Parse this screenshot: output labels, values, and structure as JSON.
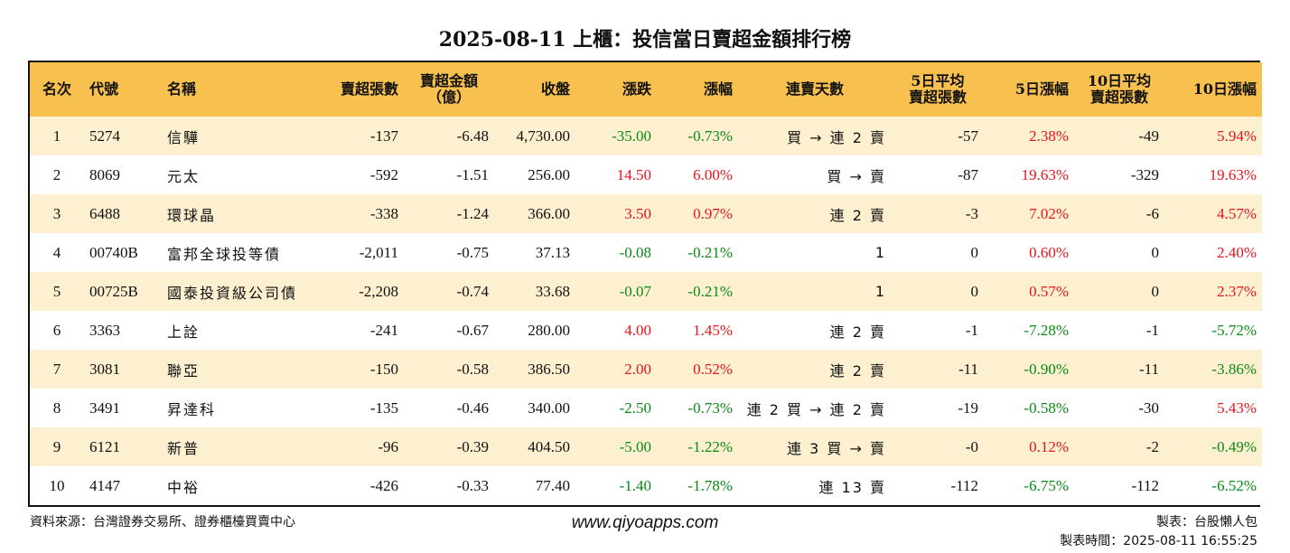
{
  "title": "2025-08-11 上櫃：投信當日賣超金額排行榜",
  "colors": {
    "header_bg": "#f7c04f",
    "row_alt": "#fdf0d0",
    "up": "#e8141c",
    "down": "#0a8a14"
  },
  "columns": [
    "名次",
    "代號",
    "名稱",
    "賣超張數",
    "賣超金額\n（億）",
    "收盤",
    "漲跌",
    "漲幅",
    "連賣天數",
    "5日平均\n賣超張數",
    "5日漲幅",
    "10日平均\n賣超張數",
    "10日漲幅"
  ],
  "rows": [
    {
      "rank": "1",
      "code": "5274",
      "name": "信驊",
      "net_lots": "-137",
      "net_amount": "-6.48",
      "close": "4,730.00",
      "change": "-35.00",
      "change_pct": "-0.73%",
      "streak": "買 → 連 2 賣",
      "avg5": "-57",
      "pct5": "2.38%",
      "avg10": "-49",
      "pct10": "5.94%"
    },
    {
      "rank": "2",
      "code": "8069",
      "name": "元太",
      "net_lots": "-592",
      "net_amount": "-1.51",
      "close": "256.00",
      "change": "14.50",
      "change_pct": "6.00%",
      "streak": "買 → 賣",
      "avg5": "-87",
      "pct5": "19.63%",
      "avg10": "-329",
      "pct10": "19.63%"
    },
    {
      "rank": "3",
      "code": "6488",
      "name": "環球晶",
      "net_lots": "-338",
      "net_amount": "-1.24",
      "close": "366.00",
      "change": "3.50",
      "change_pct": "0.97%",
      "streak": "連 2 賣",
      "avg5": "-3",
      "pct5": "7.02%",
      "avg10": "-6",
      "pct10": "4.57%"
    },
    {
      "rank": "4",
      "code": "00740B",
      "name": "富邦全球投等債",
      "net_lots": "-2,011",
      "net_amount": "-0.75",
      "close": "37.13",
      "change": "-0.08",
      "change_pct": "-0.21%",
      "streak": "1",
      "avg5": "0",
      "pct5": "0.60%",
      "avg10": "0",
      "pct10": "2.40%"
    },
    {
      "rank": "5",
      "code": "00725B",
      "name": "國泰投資級公司債",
      "net_lots": "-2,208",
      "net_amount": "-0.74",
      "close": "33.68",
      "change": "-0.07",
      "change_pct": "-0.21%",
      "streak": "1",
      "avg5": "0",
      "pct5": "0.57%",
      "avg10": "0",
      "pct10": "2.37%"
    },
    {
      "rank": "6",
      "code": "3363",
      "name": "上詮",
      "net_lots": "-241",
      "net_amount": "-0.67",
      "close": "280.00",
      "change": "4.00",
      "change_pct": "1.45%",
      "streak": "連 2 賣",
      "avg5": "-1",
      "pct5": "-7.28%",
      "avg10": "-1",
      "pct10": "-5.72%"
    },
    {
      "rank": "7",
      "code": "3081",
      "name": "聯亞",
      "net_lots": "-150",
      "net_amount": "-0.58",
      "close": "386.50",
      "change": "2.00",
      "change_pct": "0.52%",
      "streak": "連 2 賣",
      "avg5": "-11",
      "pct5": "-0.90%",
      "avg10": "-11",
      "pct10": "-3.86%"
    },
    {
      "rank": "8",
      "code": "3491",
      "name": "昇達科",
      "net_lots": "-135",
      "net_amount": "-0.46",
      "close": "340.00",
      "change": "-2.50",
      "change_pct": "-0.73%",
      "streak": "連 2 買 → 連 2 賣",
      "avg5": "-19",
      "pct5": "-0.58%",
      "avg10": "-30",
      "pct10": "5.43%"
    },
    {
      "rank": "9",
      "code": "6121",
      "name": "新普",
      "net_lots": "-96",
      "net_amount": "-0.39",
      "close": "404.50",
      "change": "-5.00",
      "change_pct": "-1.22%",
      "streak": "連 3 買 → 賣",
      "avg5": "-0",
      "pct5": "0.12%",
      "avg10": "-2",
      "pct10": "-0.49%"
    },
    {
      "rank": "10",
      "code": "4147",
      "name": "中裕",
      "net_lots": "-426",
      "net_amount": "-0.33",
      "close": "77.40",
      "change": "-1.40",
      "change_pct": "-1.78%",
      "streak": "連 13 賣",
      "avg5": "-112",
      "pct5": "-6.75%",
      "avg10": "-112",
      "pct10": "-6.52%"
    }
  ],
  "footer": {
    "source": "資料來源：台灣證券交易所、證券櫃檯買賣中心",
    "url": "www.qiyoapps.com",
    "maker": "製表：台股懶人包",
    "time": "製表時間：2025-08-11 16:55:25"
  }
}
